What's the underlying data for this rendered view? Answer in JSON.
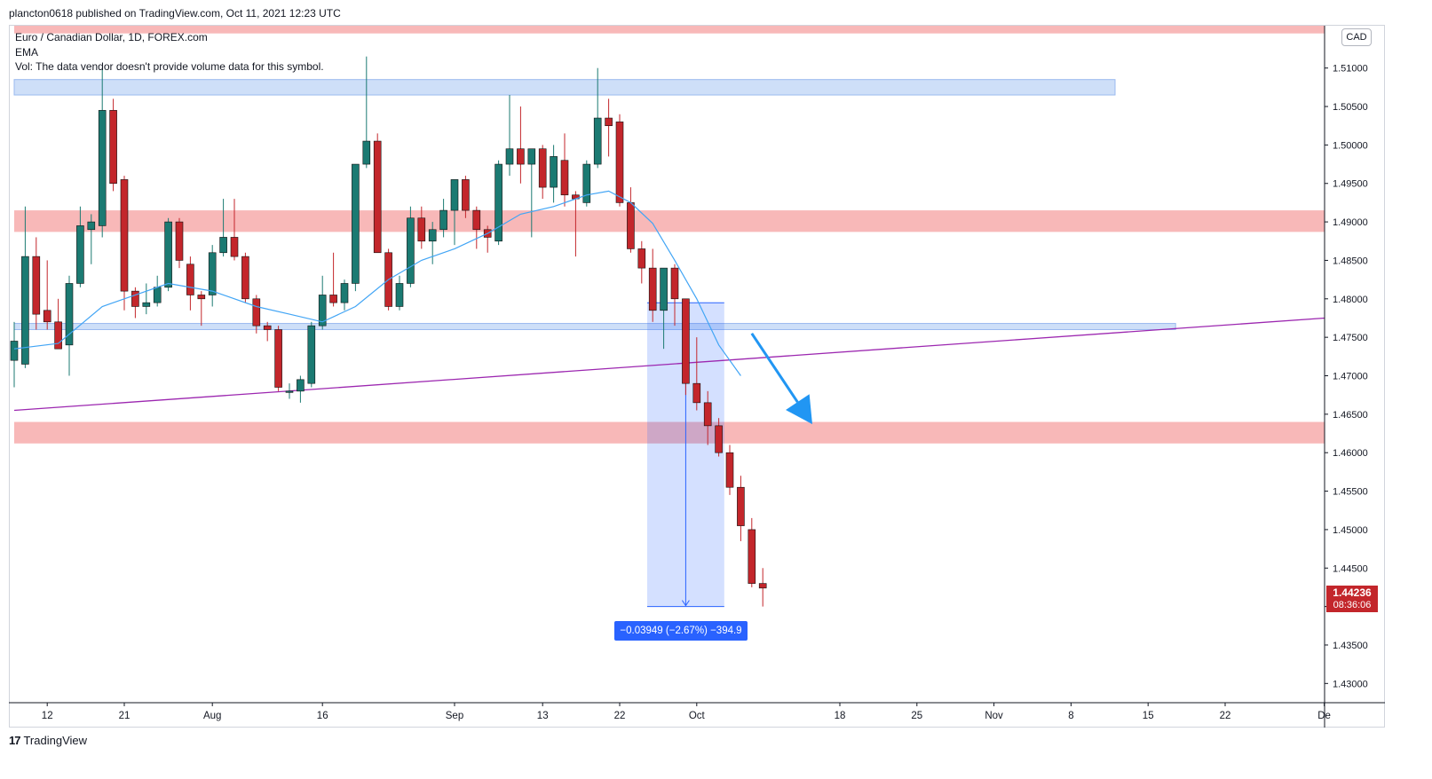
{
  "header": {
    "published": "plancton0618 published on TradingView.com, Oct 11, 2021 12:23 UTC"
  },
  "legend": {
    "symbol": "Euro / Canadian Dollar, 1D, FOREX.com",
    "indicator": "EMA",
    "volume_note": "Vol: The data vendor doesn't provide volume data for this symbol."
  },
  "currency_badge": "CAD",
  "last_price": {
    "value": "1.44236",
    "countdown": "08:36:06"
  },
  "measure": {
    "label": "−0.03949 (−2.67%) −394.9"
  },
  "footer": {
    "brand": "TradingView"
  },
  "colors": {
    "up": "#1b7a72",
    "down": "#c3262b",
    "ema": "#42a5f5",
    "trendline": "#9c27b0",
    "red_zone": "#f8b4b4",
    "blue_zone": "#c9dcf8",
    "arrow": "#2196f3",
    "measure": "#2962ff"
  },
  "chart_data": {
    "type": "candlestick",
    "ylim": [
      1.4275,
      1.5155
    ],
    "y_ticks": [
      "1.43000",
      "1.43500",
      "1.44000",
      "1.44500",
      "1.45000",
      "1.45500",
      "1.46000",
      "1.46500",
      "1.47000",
      "1.47500",
      "1.48000",
      "1.48500",
      "1.49000",
      "1.49500",
      "1.50000",
      "1.50500",
      "1.51000"
    ],
    "x_ticks": [
      {
        "label": "12",
        "index": 3
      },
      {
        "label": "21",
        "index": 10
      },
      {
        "label": "Aug",
        "index": 18
      },
      {
        "label": "16",
        "index": 28
      },
      {
        "label": "Sep",
        "index": 40
      },
      {
        "label": "13",
        "index": 48
      },
      {
        "label": "22",
        "index": 55
      },
      {
        "label": "Oct",
        "index": 62
      },
      {
        "label": "18",
        "index": 75
      },
      {
        "label": "25",
        "index": 82
      },
      {
        "label": "Nov",
        "index": 89
      },
      {
        "label": "8",
        "index": 96
      },
      {
        "label": "15",
        "index": 103
      },
      {
        "label": "22",
        "index": 110
      },
      {
        "label": "De",
        "index": 119
      }
    ],
    "candles": [
      [
        1.472,
        1.477,
        1.4685,
        1.4745
      ],
      [
        1.4715,
        1.492,
        1.471,
        1.4855
      ],
      [
        1.4855,
        1.488,
        1.476,
        1.478
      ],
      [
        1.4785,
        1.485,
        1.476,
        1.477
      ],
      [
        1.477,
        1.48,
        1.474,
        1.4735
      ],
      [
        1.474,
        1.483,
        1.47,
        1.482
      ],
      [
        1.482,
        1.492,
        1.4815,
        1.4895
      ],
      [
        1.489,
        1.491,
        1.4845,
        1.49
      ],
      [
        1.4895,
        1.51,
        1.488,
        1.5045
      ],
      [
        1.5045,
        1.506,
        1.494,
        1.495
      ],
      [
        1.4955,
        1.496,
        1.4785,
        1.481
      ],
      [
        1.481,
        1.4815,
        1.4775,
        1.479
      ],
      [
        1.479,
        1.482,
        1.478,
        1.4795
      ],
      [
        1.4795,
        1.483,
        1.479,
        1.4815
      ],
      [
        1.4815,
        1.4905,
        1.481,
        1.49
      ],
      [
        1.49,
        1.4905,
        1.484,
        1.485
      ],
      [
        1.4845,
        1.4855,
        1.4785,
        1.4805
      ],
      [
        1.4805,
        1.481,
        1.4765,
        1.48
      ],
      [
        1.4805,
        1.487,
        1.479,
        1.486
      ],
      [
        1.486,
        1.493,
        1.4855,
        1.488
      ],
      [
        1.488,
        1.493,
        1.485,
        1.4855
      ],
      [
        1.4855,
        1.486,
        1.4795,
        1.48
      ],
      [
        1.48,
        1.4805,
        1.4755,
        1.4765
      ],
      [
        1.4765,
        1.477,
        1.4745,
        1.476
      ],
      [
        1.476,
        1.4765,
        1.468,
        1.4685
      ],
      [
        1.468,
        1.469,
        1.467,
        1.468
      ],
      [
        1.468,
        1.47,
        1.4665,
        1.4695
      ],
      [
        1.469,
        1.477,
        1.4685,
        1.4765
      ],
      [
        1.4765,
        1.483,
        1.476,
        1.4805
      ],
      [
        1.4805,
        1.486,
        1.479,
        1.4795
      ],
      [
        1.4795,
        1.4825,
        1.4785,
        1.482
      ],
      [
        1.482,
        1.4975,
        1.481,
        1.4975
      ],
      [
        1.4975,
        1.5115,
        1.497,
        1.5005
      ],
      [
        1.5005,
        1.5015,
        1.486,
        1.486
      ],
      [
        1.486,
        1.4865,
        1.4785,
        1.479
      ],
      [
        1.479,
        1.483,
        1.4785,
        1.482
      ],
      [
        1.482,
        1.492,
        1.4815,
        1.4905
      ],
      [
        1.4905,
        1.492,
        1.4865,
        1.4875
      ],
      [
        1.4875,
        1.49,
        1.4845,
        1.489
      ],
      [
        1.489,
        1.493,
        1.488,
        1.4915
      ],
      [
        1.4915,
        1.4955,
        1.487,
        1.4955
      ],
      [
        1.4955,
        1.496,
        1.4905,
        1.4915
      ],
      [
        1.4915,
        1.492,
        1.4865,
        1.489
      ],
      [
        1.489,
        1.4895,
        1.486,
        1.488
      ],
      [
        1.4875,
        1.498,
        1.487,
        1.4975
      ],
      [
        1.4975,
        1.5065,
        1.496,
        1.4995
      ],
      [
        1.4995,
        1.505,
        1.495,
        1.4975
      ],
      [
        1.4975,
        1.4995,
        1.488,
        1.4995
      ],
      [
        1.4995,
        1.5,
        1.493,
        1.4945
      ],
      [
        1.4945,
        1.5,
        1.4925,
        1.4985
      ],
      [
        1.498,
        1.5015,
        1.492,
        1.4935
      ],
      [
        1.4935,
        1.494,
        1.4855,
        1.493
      ],
      [
        1.4925,
        1.498,
        1.492,
        1.4975
      ],
      [
        1.4975,
        1.51,
        1.497,
        1.5035
      ],
      [
        1.5035,
        1.506,
        1.4985,
        1.5025
      ],
      [
        1.503,
        1.504,
        1.492,
        1.4925
      ],
      [
        1.4925,
        1.4945,
        1.486,
        1.4865
      ],
      [
        1.4865,
        1.4875,
        1.482,
        1.484
      ],
      [
        1.484,
        1.4865,
        1.477,
        1.4785
      ],
      [
        1.4785,
        1.484,
        1.4735,
        1.484
      ],
      [
        1.484,
        1.4845,
        1.4765,
        1.48
      ],
      [
        1.48,
        1.4795,
        1.4675,
        1.469
      ],
      [
        1.469,
        1.475,
        1.4655,
        1.4665
      ],
      [
        1.4665,
        1.468,
        1.461,
        1.4635
      ],
      [
        1.4635,
        1.4645,
        1.4595,
        1.46
      ],
      [
        1.46,
        1.461,
        1.4545,
        1.4555
      ],
      [
        1.4555,
        1.457,
        1.4485,
        1.4505
      ],
      [
        1.45,
        1.4515,
        1.4425,
        1.443
      ],
      [
        1.443,
        1.445,
        1.44,
        1.4424
      ]
    ],
    "ema": [
      [
        0,
        1.4735
      ],
      [
        4,
        1.4742
      ],
      [
        8,
        1.479
      ],
      [
        10,
        1.48
      ],
      [
        14,
        1.482
      ],
      [
        18,
        1.481
      ],
      [
        22,
        1.479
      ],
      [
        25,
        1.478
      ],
      [
        28,
        1.477
      ],
      [
        31,
        1.479
      ],
      [
        34,
        1.4825
      ],
      [
        37,
        1.485
      ],
      [
        40,
        1.4865
      ],
      [
        43,
        1.4885
      ],
      [
        46,
        1.491
      ],
      [
        49,
        1.492
      ],
      [
        52,
        1.4935
      ],
      [
        54,
        1.494
      ],
      [
        56,
        1.4925
      ],
      [
        58,
        1.4898
      ],
      [
        60,
        1.485
      ],
      [
        62,
        1.48
      ],
      [
        64,
        1.474
      ],
      [
        66,
        1.47
      ]
    ],
    "trendline": {
      "from": [
        0,
        1.4655
      ],
      "to": [
        120,
        1.4775
      ]
    },
    "zones": [
      {
        "kind": "red",
        "y1": 1.5155,
        "y2": 1.5145,
        "x_from": 0,
        "x_to": 120
      },
      {
        "kind": "blue",
        "y1": 1.5085,
        "y2": 1.5065,
        "x_from": 0,
        "x_to": 100
      },
      {
        "kind": "red",
        "y1": 1.4915,
        "y2": 1.4887,
        "x_from": 0,
        "x_to": 120
      },
      {
        "kind": "blue",
        "y1": 1.4768,
        "y2": 1.476,
        "x_from": 0,
        "x_to": 105.5
      },
      {
        "kind": "red",
        "y1": 1.464,
        "y2": 1.4612,
        "x_from": 0,
        "x_to": 120
      }
    ],
    "measure_box": {
      "x_from": 57.5,
      "x_to": 64.5,
      "y_top": 1.47949,
      "y_bottom": 1.44
    },
    "arrow": {
      "from": [
        67,
        1.4755
      ],
      "to": [
        72.5,
        1.4637
      ]
    }
  }
}
